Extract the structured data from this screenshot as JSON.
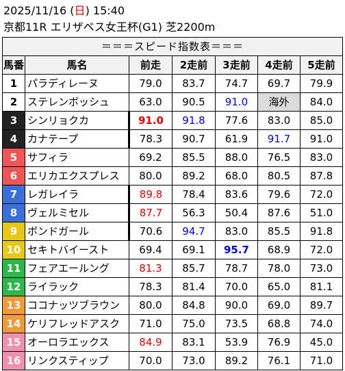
{
  "header": {
    "date_prefix": "2025/11/16 (",
    "day": "日",
    "date_suffix": ") 15:40",
    "race": "京都11R エリザベス女王杯(G1) 芝2200m"
  },
  "table": {
    "title": "＝＝＝スピード指数表＝＝＝",
    "headers": [
      "馬番",
      "馬名",
      "前走",
      "2走前",
      "3走前",
      "4走前",
      "5走前"
    ],
    "rows": [
      {
        "num": "1",
        "name": "パラディレーヌ",
        "bg": "#ffffff",
        "fg": "#000000",
        "v": [
          "79.0",
          "83.7",
          "74.7",
          "69.7",
          "79.9"
        ]
      },
      {
        "num": "2",
        "name": "ステレンボッシュ",
        "bg": "#ffffff",
        "fg": "#000000",
        "v": [
          "63.0",
          "90.5",
          "91.0",
          "海外",
          "84.0"
        ]
      },
      {
        "num": "3",
        "name": "シンリョクカ",
        "bg": "#222222",
        "fg": "#ffffff",
        "v": [
          "91.0",
          "91.8",
          "77.6",
          "83.0",
          "85.0"
        ]
      },
      {
        "num": "4",
        "name": "カナテープ",
        "bg": "#222222",
        "fg": "#ffffff",
        "v": [
          "78.3",
          "90.7",
          "61.9",
          "91.7",
          "91.0"
        ]
      },
      {
        "num": "5",
        "name": "サフィラ",
        "bg": "#ee5555",
        "fg": "#ffffff",
        "v": [
          "69.2",
          "85.5",
          "88.0",
          "76.5",
          "83.0"
        ]
      },
      {
        "num": "6",
        "name": "エリカエクスプレス",
        "bg": "#ee5555",
        "fg": "#ffffff",
        "v": [
          "80.0",
          "89.2",
          "68.0",
          "80.5",
          "87.8"
        ]
      },
      {
        "num": "7",
        "name": "レガレイラ",
        "bg": "#3a6fd8",
        "fg": "#ffffff",
        "v": [
          "89.8",
          "78.4",
          "83.6",
          "79.6",
          "72.0"
        ]
      },
      {
        "num": "8",
        "name": "ヴェルミセル",
        "bg": "#3a6fd8",
        "fg": "#ffffff",
        "v": [
          "87.7",
          "56.3",
          "50.4",
          "87.6",
          "51.0"
        ]
      },
      {
        "num": "9",
        "name": "ボンドガール",
        "bg": "#e6c818",
        "fg": "#ffffff",
        "v": [
          "70.6",
          "94.7",
          "83.0",
          "85.5",
          "91.8"
        ]
      },
      {
        "num": "10",
        "name": "セキトバイースト",
        "bg": "#e6c818",
        "fg": "#ffffff",
        "v": [
          "69.4",
          "69.1",
          "95.7",
          "68.9",
          "72.0"
        ]
      },
      {
        "num": "11",
        "name": "フェアエールング",
        "bg": "#2fb84a",
        "fg": "#ffffff",
        "v": [
          "81.3",
          "85.7",
          "78.7",
          "78.0",
          "73.0"
        ]
      },
      {
        "num": "12",
        "name": "ライラック",
        "bg": "#2fb84a",
        "fg": "#ffffff",
        "v": [
          "78.3",
          "81.4",
          "70.0",
          "65.0",
          "81.1"
        ]
      },
      {
        "num": "13",
        "name": "ココナッツブラウン",
        "bg": "#f09a3a",
        "fg": "#ffffff",
        "v": [
          "80.0",
          "84.8",
          "90.0",
          "69.0",
          "89.7"
        ]
      },
      {
        "num": "14",
        "name": "ケリフレッドアスク",
        "bg": "#f09a3a",
        "fg": "#ffffff",
        "v": [
          "71.0",
          "75.0",
          "73.5",
          "68.8",
          "74.0"
        ]
      },
      {
        "num": "15",
        "name": "オーロラエックス",
        "bg": "#f08fb0",
        "fg": "#ffffff",
        "v": [
          "84.9",
          "83.1",
          "53.9",
          "76.9",
          "45.0"
        ]
      },
      {
        "num": "16",
        "name": "リンクスティップ",
        "bg": "#f08fb0",
        "fg": "#ffffff",
        "v": [
          "70.0",
          "73.0",
          "89.2",
          "76.1",
          "71.0"
        ]
      }
    ],
    "styles": {
      "2-3": "blue",
      "3-1": "red b",
      "3-2": "blue",
      "4-4": "blue",
      "7-1": "red",
      "8-1": "red",
      "9-2": "blue",
      "10-3": "blue b",
      "11-1": "red",
      "15-1": "red",
      "2-4": "abroad"
    },
    "thick_right_rows": [
      3,
      4,
      7,
      8,
      9
    ]
  },
  "colors": {
    "highlight_red": "#e00000",
    "highlight_blue": "#0000e0"
  }
}
